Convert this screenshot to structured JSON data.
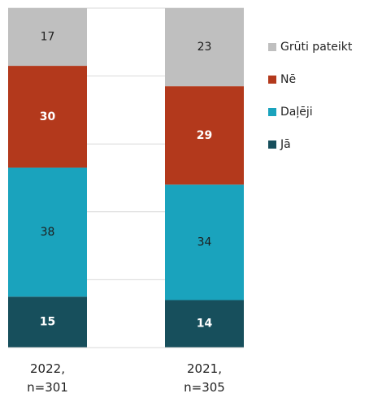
{
  "chart_data": {
    "type": "stacked_bar",
    "categories": [
      "2022,\nn=301",
      "2021,\nn=305"
    ],
    "series": [
      {
        "name": "Jā",
        "color": "#174f5c",
        "label_color": "#ffffff",
        "values": [
          15,
          14
        ]
      },
      {
        "name": "Daļēji",
        "color": "#1aa3bd",
        "label_color": "#1e1e1e",
        "values": [
          38,
          34
        ]
      },
      {
        "name": "Nē",
        "color": "#b3391c",
        "label_color": "#ffffff",
        "values": [
          30,
          29
        ]
      },
      {
        "name": "Grūti pateikt",
        "color": "#bfbfbf",
        "label_color": "#1e1e1e",
        "values": [
          17,
          23
        ]
      }
    ],
    "ylim": [
      0,
      100
    ],
    "yticks": [
      0,
      20,
      40,
      60,
      80,
      100
    ],
    "grid": true,
    "legend": "right"
  }
}
